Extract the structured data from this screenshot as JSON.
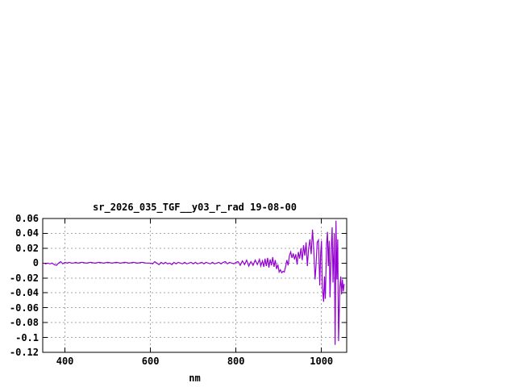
{
  "page": {
    "background": "#ffffff"
  },
  "chart_data": {
    "type": "line",
    "title": "sr_2026_035_TGF__y03_r_rad 19-08-00",
    "xlabel": "nm",
    "ylabel": "",
    "xlim": [
      348,
      1059
    ],
    "ylim": [
      -0.12,
      0.06
    ],
    "x_ticks": [
      400,
      600,
      800,
      1000
    ],
    "y_ticks": [
      {
        "label": "0.06",
        "value": 0.06
      },
      {
        "label": "0.04",
        "value": 0.04
      },
      {
        "label": "0.02",
        "value": 0.02
      },
      {
        "label": "0",
        "value": 0
      },
      {
        "label": "-0.02",
        "value": -0.02
      },
      {
        "label": "-0.04",
        "value": -0.04
      },
      {
        "label": "-0.06",
        "value": -0.06
      },
      {
        "label": "-0.08",
        "value": -0.08
      },
      {
        "label": "-0.1",
        "value": -0.1
      },
      {
        "label": "-0.12",
        "value": -0.12
      }
    ],
    "grid": "dashed",
    "legend": "none",
    "colors": {
      "line": "#9400d3",
      "frame": "#000000",
      "grid": "#a6a6a6",
      "text": "#000000",
      "background": "#ffffff"
    },
    "series": [
      {
        "points": [
          [
            350,
            0.0
          ],
          [
            355,
            -0.001
          ],
          [
            360,
            0.0
          ],
          [
            365,
            -0.001
          ],
          [
            370,
            0.0
          ],
          [
            375,
            -0.002
          ],
          [
            380,
            -0.003
          ],
          [
            385,
            0.0
          ],
          [
            390,
            0.002
          ],
          [
            395,
            -0.001
          ],
          [
            400,
            0.001
          ],
          [
            405,
            0.0
          ],
          [
            410,
            0.001
          ],
          [
            415,
            0.0
          ],
          [
            420,
            0.0
          ],
          [
            425,
            0.001
          ],
          [
            430,
            0.0
          ],
          [
            440,
            0.001
          ],
          [
            450,
            0.0
          ],
          [
            460,
            0.001
          ],
          [
            470,
            0.0
          ],
          [
            480,
            0.001
          ],
          [
            490,
            0.0
          ],
          [
            500,
            0.001
          ],
          [
            510,
            0.0
          ],
          [
            520,
            0.001
          ],
          [
            530,
            0.0
          ],
          [
            540,
            0.001
          ],
          [
            550,
            0.0
          ],
          [
            560,
            0.001
          ],
          [
            570,
            0.0
          ],
          [
            580,
            0.001
          ],
          [
            590,
            0.0
          ],
          [
            600,
            0.0
          ],
          [
            605,
            -0.001
          ],
          [
            610,
            0.002
          ],
          [
            615,
            0.0
          ],
          [
            620,
            -0.002
          ],
          [
            625,
            0.001
          ],
          [
            630,
            -0.001
          ],
          [
            635,
            0.001
          ],
          [
            640,
            -0.001
          ],
          [
            645,
            0.0
          ],
          [
            650,
            -0.002
          ],
          [
            655,
            0.001
          ],
          [
            660,
            -0.001
          ],
          [
            665,
            0.001
          ],
          [
            670,
            0.0
          ],
          [
            675,
            -0.001
          ],
          [
            680,
            0.001
          ],
          [
            685,
            -0.001
          ],
          [
            690,
            0.0
          ],
          [
            695,
            0.001
          ],
          [
            700,
            -0.001
          ],
          [
            705,
            0.001
          ],
          [
            710,
            -0.001
          ],
          [
            715,
            0.0
          ],
          [
            720,
            0.001
          ],
          [
            725,
            -0.001
          ],
          [
            730,
            0.001
          ],
          [
            735,
            0.0
          ],
          [
            740,
            -0.001
          ],
          [
            745,
            0.001
          ],
          [
            750,
            -0.001
          ],
          [
            755,
            0.0
          ],
          [
            760,
            0.001
          ],
          [
            765,
            -0.001
          ],
          [
            770,
            0.001
          ],
          [
            775,
            0.002
          ],
          [
            780,
            -0.001
          ],
          [
            785,
            0.001
          ],
          [
            790,
            0.0
          ],
          [
            795,
            -0.001
          ],
          [
            800,
            0.001
          ],
          [
            805,
            0.002
          ],
          [
            810,
            -0.003
          ],
          [
            815,
            0.003
          ],
          [
            820,
            -0.002
          ],
          [
            825,
            0.004
          ],
          [
            830,
            -0.004
          ],
          [
            835,
            0.002
          ],
          [
            840,
            -0.003
          ],
          [
            845,
            0.004
          ],
          [
            850,
            -0.002
          ],
          [
            855,
            0.005
          ],
          [
            858,
            -0.004
          ],
          [
            862,
            0.003
          ],
          [
            865,
            -0.005
          ],
          [
            868,
            0.006
          ],
          [
            871,
            -0.004
          ],
          [
            874,
            0.007
          ],
          [
            877,
            -0.006
          ],
          [
            880,
            0.005
          ],
          [
            883,
            -0.003
          ],
          [
            886,
            0.008
          ],
          [
            889,
            -0.005
          ],
          [
            892,
            0.004
          ],
          [
            895,
            -0.008
          ],
          [
            898,
            -0.002
          ],
          [
            901,
            -0.012
          ],
          [
            904,
            -0.009
          ],
          [
            907,
            -0.013
          ],
          [
            910,
            -0.011
          ],
          [
            913,
            -0.012
          ],
          [
            916,
            -0.005
          ],
          [
            919,
            0.004
          ],
          [
            922,
            -0.003
          ],
          [
            925,
            0.01
          ],
          [
            928,
            0.015
          ],
          [
            931,
            0.007
          ],
          [
            934,
            0.013
          ],
          [
            937,
            0.005
          ],
          [
            940,
            0.012
          ],
          [
            943,
            -0.002
          ],
          [
            946,
            0.015
          ],
          [
            949,
            0.006
          ],
          [
            952,
            0.02
          ],
          [
            955,
            0.004
          ],
          [
            958,
            0.024
          ],
          [
            961,
            0.01
          ],
          [
            964,
            0.028
          ],
          [
            967,
            -0.004
          ],
          [
            970,
            0.02
          ],
          [
            973,
            0.032
          ],
          [
            976,
            0.012
          ],
          [
            979,
            0.045
          ],
          [
            982,
            0.018
          ],
          [
            985,
            -0.022
          ],
          [
            987,
            -0.006
          ],
          [
            990,
            0.028
          ],
          [
            993,
            0.031
          ],
          [
            996,
            -0.03
          ],
          [
            998,
            0.012
          ],
          [
            1000,
            0.03
          ],
          [
            1002,
            -0.032
          ],
          [
            1005,
            -0.052
          ],
          [
            1007,
            -0.018
          ],
          [
            1009,
            -0.048
          ],
          [
            1012,
            0.026
          ],
          [
            1014,
            0.042
          ],
          [
            1016,
            -0.004
          ],
          [
            1018,
            0.03
          ],
          [
            1020,
            -0.046
          ],
          [
            1023,
            0.022
          ],
          [
            1025,
            0.048
          ],
          [
            1027,
            -0.026
          ],
          [
            1030,
            0.04
          ],
          [
            1032,
            -0.11
          ],
          [
            1034,
            0.057
          ],
          [
            1036,
            -0.022
          ],
          [
            1038,
            0.032
          ],
          [
            1040,
            -0.105
          ],
          [
            1043,
            -0.032
          ],
          [
            1045,
            -0.018
          ],
          [
            1047,
            -0.042
          ],
          [
            1049,
            -0.022
          ],
          [
            1051,
            -0.038
          ],
          [
            1053,
            -0.028
          ]
        ]
      }
    ]
  }
}
